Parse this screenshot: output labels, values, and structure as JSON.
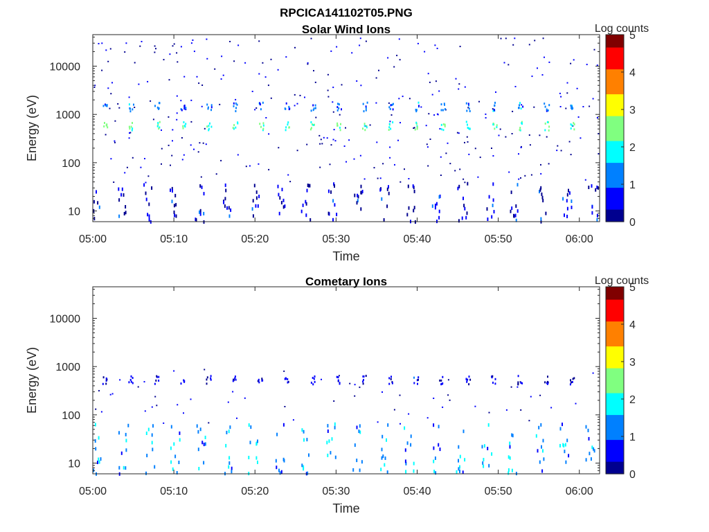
{
  "figure": {
    "title": "RPCICA141102T05.PNG"
  },
  "colorbar": {
    "label": "Log counts",
    "colormap": "jet",
    "ticks": [
      "0",
      "1",
      "2",
      "3",
      "4",
      "5"
    ],
    "colors": [
      "#00008f",
      "#0000ff",
      "#0080ff",
      "#00ffff",
      "#80ff80",
      "#ffff00",
      "#ff8000",
      "#ff0000",
      "#800000"
    ]
  },
  "chart_data": [
    {
      "type": "heatmap",
      "title": "Solar Wind Ions",
      "xlabel": "Time",
      "ylabel": "Energy (eV)",
      "x_tick_labels": [
        "05:00",
        "05:10",
        "05:20",
        "05:30",
        "05:40",
        "05:50",
        "06:00"
      ],
      "y_tick_labels": [
        "10",
        "100",
        "1000",
        "10000"
      ],
      "y_scale": "log",
      "xlim_minutes": [
        0,
        62.5
      ],
      "ylim_ev": [
        6,
        45000
      ],
      "color_range": [
        0,
        5
      ],
      "grid": false,
      "features": [
        {
          "description": "periodic sweeps",
          "time_min": [
            1.5,
            4.7,
            7.9,
            11.1,
            14.3,
            17.5,
            20.7,
            23.9,
            27.1,
            30.3,
            33.5,
            36.7,
            39.9,
            43.1,
            46.3,
            49.5,
            52.7,
            55.9,
            59.1
          ],
          "energy_ev": 600,
          "log_counts": 2.3
        },
        {
          "description": "secondary peaks",
          "time_min": [
            1.5,
            4.7,
            7.9,
            11.1,
            14.3,
            17.5,
            20.7,
            23.9,
            27.1,
            30.3,
            33.5,
            36.7,
            39.9,
            43.1,
            46.3,
            49.5,
            52.7,
            55.9,
            59.1
          ],
          "energy_ev": 1500,
          "log_counts": 1.2
        },
        {
          "description": "low energy bursts",
          "time_min": [
            0.2,
            3.2,
            6.5,
            9.8,
            12.9,
            16.3,
            19.6,
            22.8,
            25.9,
            29.3,
            32.5,
            35.7,
            38.9,
            42.1,
            45.3,
            48.6,
            51.8,
            55.0,
            58.2,
            61.4
          ],
          "energy_ev_range": [
            6,
            40
          ],
          "log_counts": 0.4
        }
      ]
    },
    {
      "type": "heatmap",
      "title": "Cometary Ions",
      "xlabel": "Time",
      "ylabel": "Energy (eV)",
      "x_tick_labels": [
        "05:00",
        "05:10",
        "05:20",
        "05:30",
        "05:40",
        "05:50",
        "06:00"
      ],
      "y_tick_labels": [
        "10",
        "100",
        "1000",
        "10000"
      ],
      "y_scale": "log",
      "xlim_minutes": [
        0,
        62.5
      ],
      "ylim_ev": [
        6,
        45000
      ],
      "color_range": [
        0,
        5
      ],
      "grid": false,
      "features": [
        {
          "description": "low energy streaks",
          "time_min": [
            0.3,
            3.5,
            6.7,
            9.9,
            13.1,
            16.3,
            19.5,
            22.7,
            25.9,
            29.1,
            32.3,
            35.5,
            38.7,
            41.9,
            45.1,
            48.3,
            51.5,
            54.7,
            57.9,
            61.1
          ],
          "energy_ev_range": [
            6,
            70
          ],
          "log_counts": 1.4
        },
        {
          "description": "periodic dots",
          "time_min": [
            1.4,
            4.6,
            7.8,
            11.0,
            14.2,
            17.4,
            20.6,
            23.8,
            27.0,
            30.2,
            33.4,
            36.6,
            39.8,
            43.0,
            46.2,
            49.4,
            52.6,
            55.8,
            59.0
          ],
          "energy_ev": 550,
          "log_counts": 0.5
        }
      ]
    }
  ]
}
